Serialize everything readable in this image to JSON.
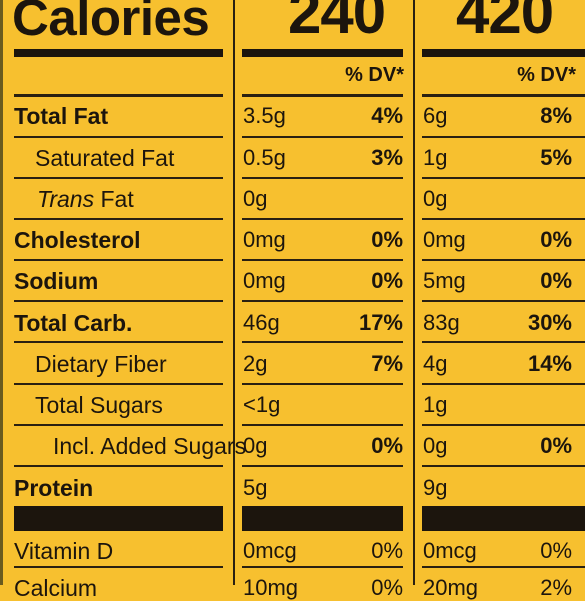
{
  "header": {
    "calories_label": "Calories",
    "calories_col1": "240",
    "calories_col2": "420",
    "dv_label_col1": "% DV*",
    "dv_label_col2": "% DV*"
  },
  "rows": [
    {
      "name": "Total Fat",
      "col1_amount": "3.5g",
      "col1_dv": "4%",
      "col2_amount": "6g",
      "col2_dv": "8%"
    },
    {
      "name": "Saturated Fat",
      "col1_amount": "0.5g",
      "col1_dv": "3%",
      "col2_amount": "1g",
      "col2_dv": "5%"
    },
    {
      "name_italic": "Trans",
      "name_rest": " Fat",
      "col1_amount": "0g",
      "col1_dv": "",
      "col2_amount": "0g",
      "col2_dv": ""
    },
    {
      "name": "Cholesterol",
      "col1_amount": "0mg",
      "col1_dv": "0%",
      "col2_amount": "0mg",
      "col2_dv": "0%"
    },
    {
      "name": "Sodium",
      "col1_amount": "0mg",
      "col1_dv": "0%",
      "col2_amount": "5mg",
      "col2_dv": "0%"
    },
    {
      "name": "Total Carb.",
      "col1_amount": "46g",
      "col1_dv": "17%",
      "col2_amount": "83g",
      "col2_dv": "30%"
    },
    {
      "name": "Dietary Fiber",
      "col1_amount": "2g",
      "col1_dv": "7%",
      "col2_amount": "4g",
      "col2_dv": "14%"
    },
    {
      "name": "Total Sugars",
      "col1_amount": "<1g",
      "col1_dv": "",
      "col2_amount": "1g",
      "col2_dv": ""
    },
    {
      "name": "Incl. Added Sugars",
      "col1_amount": "0g",
      "col1_dv": "0%",
      "col2_amount": "0g",
      "col2_dv": "0%"
    },
    {
      "name": "Protein",
      "col1_amount": "5g",
      "col1_dv": "",
      "col2_amount": "9g",
      "col2_dv": ""
    },
    {
      "name": "Vitamin D",
      "col1_amount": "0mcg",
      "col1_dv": "0%",
      "col2_amount": "0mcg",
      "col2_dv": "0%"
    },
    {
      "name": "Calcium",
      "col1_amount": "10mg",
      "col1_dv": "0%",
      "col2_amount": "20mg",
      "col2_dv": "2%"
    }
  ]
}
